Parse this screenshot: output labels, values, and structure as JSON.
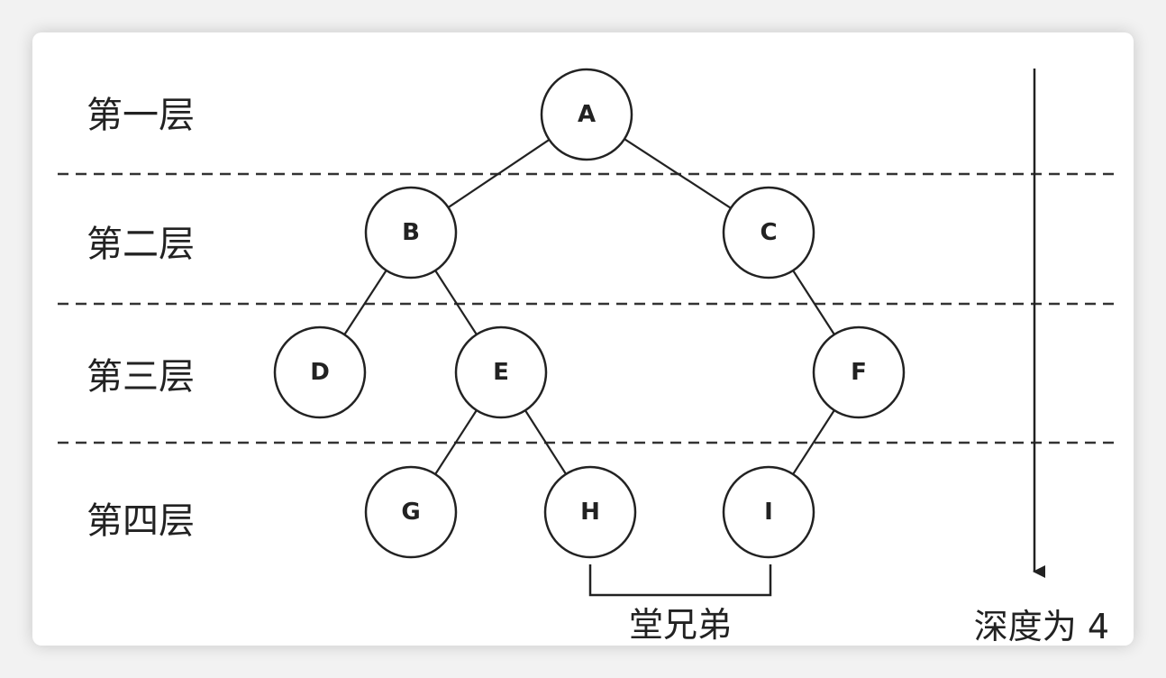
{
  "levels": [
    "第一层",
    "第二层",
    "第三层",
    "第四层"
  ],
  "nodes": [
    "A",
    "B",
    "C",
    "D",
    "E",
    "F",
    "G",
    "H",
    "I"
  ],
  "edges": [
    [
      "A",
      "B"
    ],
    [
      "A",
      "C"
    ],
    [
      "B",
      "D"
    ],
    [
      "B",
      "E"
    ],
    [
      "C",
      "F"
    ],
    [
      "E",
      "G"
    ],
    [
      "E",
      "H"
    ],
    [
      "F",
      "I"
    ]
  ],
  "cousin_label": "堂兄弟",
  "depth_label": "深度为 4"
}
